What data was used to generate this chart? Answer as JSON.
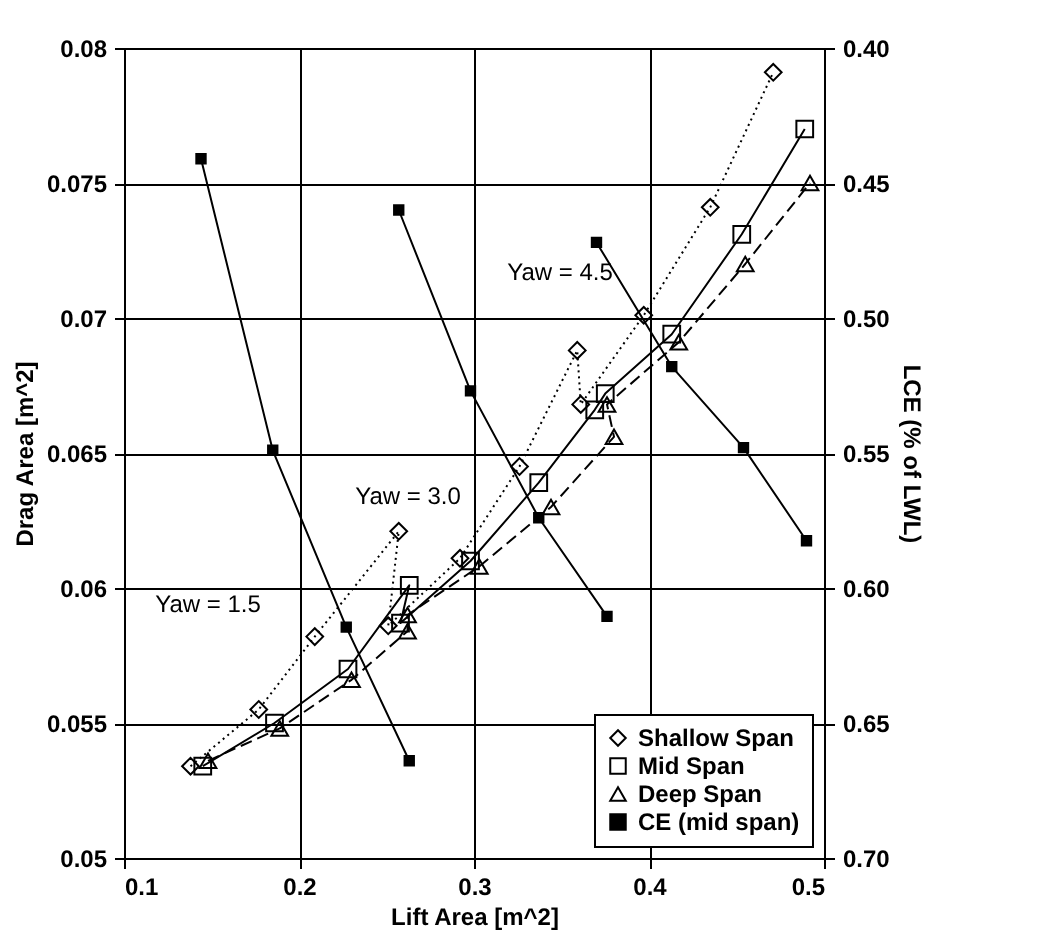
{
  "chart_data": {
    "type": "line",
    "xlabel": "Lift Area [m^2]",
    "ylabel": "Drag Area [m^2]",
    "y2label": "LCE (% of LWL)",
    "xlim": [
      0.1,
      0.5
    ],
    "xticks": [
      0.1,
      0.2,
      0.3,
      0.4,
      0.5
    ],
    "ylim": [
      0.05,
      0.08
    ],
    "yticks": [
      0.05,
      0.055,
      0.06,
      0.065,
      0.07,
      0.075,
      0.08
    ],
    "y2lim": [
      0.7,
      0.4
    ],
    "y2ticks": [
      {
        "value": 0.4,
        "label": "0.40"
      },
      {
        "value": 0.45,
        "label": "0.45"
      },
      {
        "value": 0.5,
        "label": "0.50"
      },
      {
        "value": 0.55,
        "label": "0.55"
      },
      {
        "value": 0.6,
        "label": "0.60"
      },
      {
        "value": 0.65,
        "label": "0.65"
      },
      {
        "value": 0.7,
        "label": "0.70"
      }
    ],
    "grid": true,
    "legend": "bottom right",
    "annotations": [
      "Yaw = 1.5",
      "Yaw = 3.0",
      "Yaw = 4.5"
    ],
    "series": [
      {
        "name": "Shallow Span",
        "color": "#000000",
        "marker": "diamond",
        "line_style": "dotted",
        "x": [
          0.138,
          0.177,
          0.209,
          0.257,
          0.251,
          0.292,
          0.326,
          0.359,
          0.361,
          0.397,
          0.435,
          0.471
        ],
        "values": [
          0.0534,
          0.0555,
          0.0582,
          0.0621,
          0.0586,
          0.0611,
          0.0645,
          0.0688,
          0.0668,
          0.0701,
          0.0741,
          0.0791
        ]
      },
      {
        "name": "Mid Span",
        "color": "#000000",
        "marker": "square",
        "line_style": "solid",
        "x": [
          0.145,
          0.186,
          0.228,
          0.263,
          0.258,
          0.298,
          0.337,
          0.369,
          0.375,
          0.413,
          0.453,
          0.489
        ],
        "values": [
          0.0534,
          0.055,
          0.057,
          0.0601,
          0.0587,
          0.061,
          0.0639,
          0.0666,
          0.0672,
          0.0694,
          0.0731,
          0.077
        ]
      },
      {
        "name": "Deep Span",
        "color": "#000000",
        "marker": "triangle",
        "line_style": "dashed",
        "x": [
          0.148,
          0.189,
          0.23,
          0.262,
          0.262,
          0.303,
          0.344,
          0.38,
          0.376,
          0.417,
          0.455,
          0.492
        ],
        "values": [
          0.0536,
          0.0548,
          0.0566,
          0.0584,
          0.059,
          0.0608,
          0.063,
          0.0656,
          0.0668,
          0.0691,
          0.072,
          0.075
        ]
      },
      {
        "name": "CE (mid span)",
        "axis": "y2",
        "color": "#000000",
        "marker": "square",
        "line_style": "solid",
        "x": [
          0.144,
          0.185,
          0.227,
          0.263,
          null,
          0.257,
          0.298,
          0.337,
          0.376,
          null,
          0.37,
          0.413,
          0.454,
          0.49
        ],
        "values": [
          0.441,
          0.549,
          0.6145,
          0.664,
          null,
          0.46,
          0.527,
          0.574,
          0.6105,
          null,
          0.472,
          0.518,
          0.548,
          0.5825
        ]
      }
    ]
  }
}
